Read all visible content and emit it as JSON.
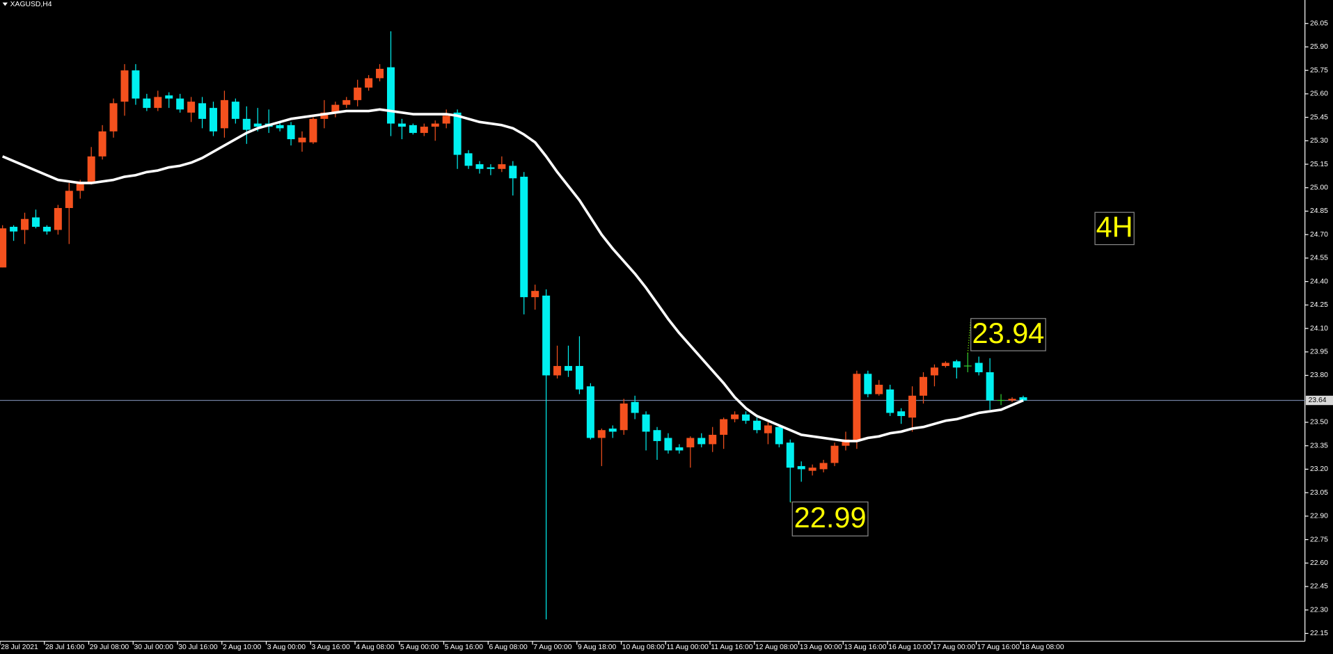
{
  "chart_data": {
    "type": "candlestick",
    "title": "XAGUSD,H4",
    "up_color": "#f4511e",
    "down_color": "#00f0f0",
    "doji_color": "#32cd32",
    "categories": [
      "28 Jul 2021",
      null,
      null,
      null,
      "28 Jul 16:00",
      null,
      null,
      null,
      "29 Jul 08:00",
      null,
      null,
      null,
      "30 Jul 00:00",
      null,
      null,
      null,
      "30 Jul 16:00",
      null,
      null,
      null,
      "2 Aug 10:00",
      null,
      null,
      null,
      "3 Aug 00:00",
      null,
      null,
      null,
      "3 Aug 16:00",
      null,
      null,
      null,
      "4 Aug 08:00",
      null,
      null,
      null,
      "5 Aug 00:00",
      null,
      null,
      null,
      "5 Aug 16:00",
      null,
      null,
      null,
      "6 Aug 08:00",
      null,
      null,
      null,
      "7 Aug 00:00",
      null,
      null,
      null,
      "9 Aug 18:00",
      null,
      null,
      null,
      "10 Aug 08:00",
      null,
      null,
      null,
      "11 Aug 00:00",
      null,
      null,
      null,
      "11 Aug 16:00",
      null,
      null,
      null,
      "12 Aug 08:00",
      null,
      null,
      null,
      "13 Aug 00:00",
      null,
      null,
      null,
      "13 Aug 16:00",
      null,
      null,
      null,
      "16 Aug 10:00",
      null,
      null,
      null,
      "17 Aug 00:00",
      null,
      null,
      null,
      "17 Aug 16:00",
      null,
      null,
      null,
      "18 Aug 08:00"
    ],
    "open": [
      24.49,
      24.75,
      24.73,
      24.81,
      24.75,
      24.73,
      24.87,
      24.98,
      25.03,
      25.2,
      25.36,
      25.55,
      25.75,
      25.57,
      25.51,
      25.59,
      25.57,
      25.48,
      25.54,
      25.51,
      25.38,
      25.55,
      25.44,
      25.41,
      25.41,
      25.4,
      25.4,
      25.29,
      25.29,
      25.44,
      25.48,
      25.53,
      25.56,
      25.64,
      25.7,
      25.77,
      25.41,
      25.4,
      25.35,
      25.39,
      25.41,
      25.48,
      25.22,
      25.15,
      25.13,
      25.12,
      25.14,
      25.07,
      24.3,
      24.31,
      23.8,
      23.86,
      23.86,
      23.73,
      23.4,
      23.46,
      23.45,
      23.63,
      23.55,
      23.45,
      23.4,
      23.34,
      23.34,
      23.4,
      23.36,
      23.42,
      23.52,
      23.55,
      23.51,
      23.43,
      23.47,
      23.37,
      23.22,
      23.19,
      23.2,
      23.24,
      23.35,
      23.38,
      23.81,
      23.68,
      23.71,
      23.57,
      23.53,
      23.67,
      23.8,
      23.86,
      23.89,
      23.86,
      23.88,
      23.82,
      23.64,
      23.64,
      23.66
    ],
    "high": [
      24.76,
      24.76,
      24.84,
      24.86,
      24.76,
      24.89,
      25.03,
      25.05,
      25.26,
      25.4,
      25.57,
      25.79,
      25.79,
      25.6,
      25.62,
      25.61,
      25.6,
      25.58,
      25.58,
      25.55,
      25.62,
      25.57,
      25.52,
      25.51,
      25.5,
      25.42,
      25.42,
      25.36,
      25.45,
      25.56,
      25.55,
      25.58,
      25.69,
      25.72,
      25.79,
      26.0,
      25.44,
      25.41,
      25.41,
      25.43,
      25.5,
      25.5,
      25.24,
      25.17,
      25.15,
      25.2,
      25.17,
      25.1,
      24.38,
      24.35,
      23.99,
      23.99,
      24.05,
      23.75,
      23.46,
      23.48,
      23.65,
      23.67,
      23.57,
      23.47,
      23.43,
      23.36,
      23.41,
      23.43,
      23.47,
      23.53,
      23.57,
      23.57,
      23.53,
      23.5,
      23.48,
      23.39,
      23.25,
      23.23,
      23.26,
      23.37,
      23.44,
      23.83,
      23.83,
      23.77,
      23.74,
      23.59,
      23.73,
      23.82,
      23.87,
      23.89,
      23.9,
      23.94,
      23.92,
      23.91,
      23.68,
      23.66,
      23.67
    ],
    "low": [
      24.49,
      24.66,
      24.64,
      24.74,
      24.7,
      24.7,
      24.64,
      24.93,
      25.02,
      25.18,
      25.32,
      25.46,
      25.53,
      25.49,
      25.49,
      25.51,
      25.48,
      25.42,
      25.38,
      25.33,
      25.32,
      25.41,
      25.28,
      25.36,
      25.35,
      25.36,
      25.27,
      25.23,
      25.28,
      25.38,
      25.45,
      25.51,
      25.52,
      25.62,
      25.68,
      25.33,
      25.31,
      25.34,
      25.33,
      25.3,
      25.38,
      25.12,
      25.12,
      25.09,
      25.08,
      25.1,
      24.95,
      24.19,
      24.22,
      22.24,
      23.78,
      23.79,
      23.68,
      23.39,
      23.22,
      23.4,
      23.42,
      23.52,
      23.32,
      23.26,
      23.3,
      23.3,
      23.21,
      23.34,
      23.31,
      23.33,
      23.5,
      23.49,
      23.43,
      23.36,
      23.34,
      22.99,
      23.12,
      23.16,
      23.18,
      23.22,
      23.32,
      23.33,
      23.66,
      23.67,
      23.54,
      23.49,
      23.44,
      23.62,
      23.73,
      23.85,
      23.78,
      23.82,
      23.8,
      23.58,
      23.61,
      23.63,
      23.63
    ],
    "close": [
      24.74,
      24.72,
      24.8,
      24.75,
      24.72,
      24.87,
      24.98,
      25.03,
      25.2,
      25.36,
      25.54,
      25.75,
      25.57,
      25.51,
      25.58,
      25.57,
      25.5,
      25.55,
      25.44,
      25.36,
      25.56,
      25.44,
      25.37,
      25.39,
      25.39,
      25.38,
      25.31,
      25.32,
      25.44,
      25.48,
      25.53,
      25.56,
      25.64,
      25.7,
      25.76,
      25.41,
      25.39,
      25.35,
      25.39,
      25.41,
      25.46,
      25.21,
      25.14,
      25.12,
      25.12,
      25.15,
      25.06,
      24.3,
      24.34,
      23.8,
      23.86,
      23.83,
      23.71,
      23.4,
      23.45,
      23.44,
      23.62,
      23.56,
      23.44,
      23.38,
      23.32,
      23.32,
      23.4,
      23.36,
      23.42,
      23.52,
      23.55,
      23.51,
      23.45,
      23.48,
      23.36,
      23.21,
      23.2,
      23.21,
      23.24,
      23.35,
      23.39,
      23.81,
      23.68,
      23.74,
      23.56,
      23.54,
      23.67,
      23.79,
      23.85,
      23.88,
      23.85,
      23.86,
      23.82,
      23.64,
      23.64,
      23.65,
      23.64
    ],
    "moving_average": {
      "color": "#ffffff",
      "values": [
        25.2,
        25.17,
        25.14,
        25.11,
        25.08,
        25.05,
        25.04,
        25.03,
        25.03,
        25.04,
        25.05,
        25.07,
        25.08,
        25.1,
        25.11,
        25.13,
        25.14,
        25.16,
        25.19,
        25.23,
        25.27,
        25.31,
        25.35,
        25.38,
        25.4,
        25.42,
        25.44,
        25.45,
        25.46,
        25.47,
        25.48,
        25.49,
        25.49,
        25.49,
        25.5,
        25.49,
        25.48,
        25.47,
        25.47,
        25.47,
        25.47,
        25.46,
        25.44,
        25.42,
        25.41,
        25.4,
        25.38,
        25.34,
        25.29,
        25.2,
        25.1,
        25.01,
        24.92,
        24.81,
        24.7,
        24.61,
        24.53,
        24.45,
        24.36,
        24.26,
        24.16,
        24.07,
        23.99,
        23.91,
        23.83,
        23.75,
        23.66,
        23.59,
        23.54,
        23.51,
        23.48,
        23.45,
        23.42,
        23.41,
        23.4,
        23.39,
        23.38,
        23.38,
        23.4,
        23.41,
        23.43,
        23.44,
        23.46,
        23.47,
        23.49,
        23.51,
        23.52,
        23.54,
        23.56,
        23.57,
        23.58,
        23.61,
        23.64
      ]
    },
    "current_price": 23.64,
    "ylim": [
      22.1,
      26.2
    ],
    "yticks": [
      26.05,
      {
        "value": 25.9,
        "label": "25.90"
      },
      25.75,
      {
        "value": 25.6,
        "label": "25.60"
      },
      25.45,
      {
        "value": 25.3,
        "label": "25.30"
      },
      25.15,
      {
        "value": 25,
        "label": "25.00"
      },
      24.85,
      {
        "value": 24.7,
        "label": "24.70"
      },
      24.55,
      {
        "value": 24.4,
        "label": "24.40"
      },
      24.25,
      {
        "value": 24.1,
        "label": "24.10"
      },
      23.95,
      {
        "value": 23.8,
        "label": "23.80"
      },
      {
        "value": 23.5,
        "label": "23.50"
      },
      23.35,
      {
        "value": 23.2,
        "label": "23.20"
      },
      23.05,
      {
        "value": 22.9,
        "label": "22.90"
      },
      22.75,
      {
        "value": 22.6,
        "label": "22.60"
      },
      22.45,
      {
        "value": 22.3,
        "label": "22.30"
      },
      22.15
    ],
    "grid": false,
    "annotations": [
      {
        "text": "4H"
      },
      {
        "text": "23.94"
      },
      {
        "text": "22.99"
      }
    ]
  }
}
